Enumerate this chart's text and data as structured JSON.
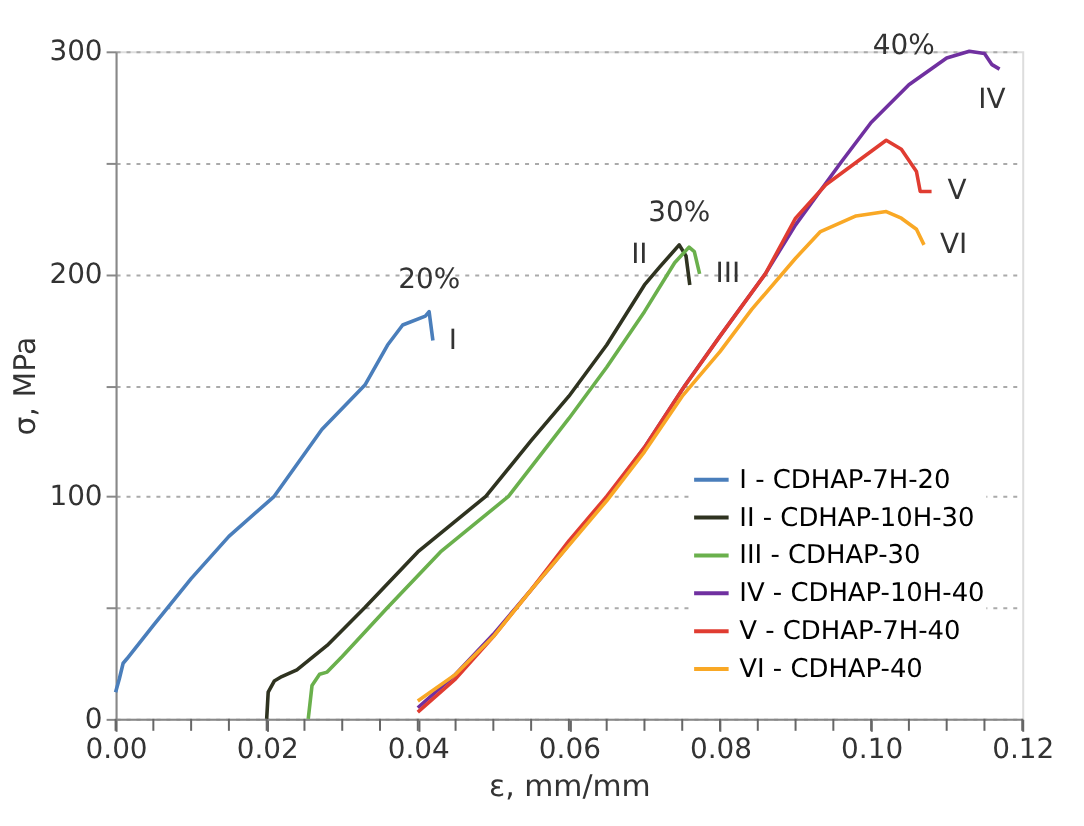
{
  "chart_data": {
    "type": "line",
    "xlabel": "ε, mm/mm",
    "ylabel": "σ, MPa",
    "xlim": [
      0,
      0.12
    ],
    "ylim": [
      0,
      300
    ],
    "xticks": [
      {
        "value": 0,
        "label": "0.00"
      },
      {
        "value": 0.005,
        "label": null
      },
      {
        "value": 0.01,
        "label": null
      },
      {
        "value": 0.015,
        "label": null
      },
      {
        "value": 0.02,
        "label": "0.02"
      },
      {
        "value": 0.025,
        "label": null
      },
      {
        "value": 0.03,
        "label": null
      },
      {
        "value": 0.035,
        "label": null
      },
      {
        "value": 0.04,
        "label": "0.04"
      },
      {
        "value": 0.045,
        "label": null
      },
      {
        "value": 0.05,
        "label": null
      },
      {
        "value": 0.055,
        "label": null
      },
      {
        "value": 0.06,
        "label": "0.06"
      },
      {
        "value": 0.065,
        "label": null
      },
      {
        "value": 0.07,
        "label": null
      },
      {
        "value": 0.075,
        "label": null
      },
      {
        "value": 0.08,
        "label": "0.08"
      },
      {
        "value": 0.085,
        "label": null
      },
      {
        "value": 0.09,
        "label": null
      },
      {
        "value": 0.095,
        "label": null
      },
      {
        "value": 0.1,
        "label": "0.10"
      },
      {
        "value": 0.105,
        "label": null
      },
      {
        "value": 0.11,
        "label": null
      },
      {
        "value": 0.115,
        "label": null
      },
      {
        "value": 0.12,
        "label": "0.12"
      }
    ],
    "yticks": [
      0,
      {
        "value": 50,
        "label": null
      },
      100,
      {
        "value": 150,
        "label": null
      },
      200,
      {
        "value": 250,
        "label": null
      },
      300
    ],
    "grid": "y",
    "legend": "bottom right",
    "marker": "none",
    "line_style": "solid",
    "series": [
      {
        "name": "I - CDHAP-7H-20",
        "color": "#4a7ebb",
        "x": [
          0,
          0.0005,
          0.001,
          0.0015,
          0.005,
          0.01,
          0.015,
          0.021,
          0.0273,
          0.033,
          0.036,
          0.038,
          0.041,
          0.0415,
          0.042
        ],
        "values": [
          12,
          18,
          25,
          27,
          42,
          63,
          82,
          100,
          130,
          150,
          168,
          177,
          181,
          183,
          170
        ]
      },
      {
        "name": "II - CDHAP-10H-30",
        "color": "#2f3320",
        "x": [
          0.02,
          0.0202,
          0.021,
          0.022,
          0.024,
          0.028,
          0.033,
          0.04,
          0.049,
          0.055,
          0.06,
          0.065,
          0.07,
          0.072,
          0.0746,
          0.0755,
          0.076
        ],
        "values": [
          0,
          12,
          17,
          19,
          22,
          33,
          50,
          75,
          100,
          125,
          145,
          168,
          195,
          203,
          213,
          208,
          195
        ]
      },
      {
        "name": "III - CDHAP-30",
        "color": "#6ab04c",
        "x": [
          0.0255,
          0.026,
          0.027,
          0.028,
          0.03,
          0.036,
          0.043,
          0.052,
          0.06,
          0.065,
          0.07,
          0.074,
          0.0759,
          0.0766,
          0.0773
        ],
        "values": [
          0,
          15,
          20,
          21,
          28,
          50,
          75,
          100,
          135,
          158,
          183,
          205,
          212,
          210,
          200
        ]
      },
      {
        "name": "IV - CDHAP-10H-40",
        "color": "#7030a0",
        "x": [
          0.04,
          0.045,
          0.05,
          0.053,
          0.058,
          0.0652,
          0.07,
          0.0754,
          0.08,
          0.086,
          0.09,
          0.096,
          0.1,
          0.105,
          0.11,
          0.113,
          0.115,
          0.116,
          0.117
        ],
        "values": [
          5,
          20,
          38,
          50,
          70,
          100,
          122,
          150,
          172,
          200,
          222,
          250,
          268,
          285,
          297,
          300,
          299,
          294,
          292
        ]
      },
      {
        "name": "V - CDHAP-7H-40",
        "color": "#e03c31",
        "x": [
          0.04,
          0.045,
          0.05,
          0.055,
          0.06,
          0.065,
          0.07,
          0.075,
          0.08,
          0.086,
          0.09,
          0.094,
          0.098,
          0.102,
          0.104,
          0.106,
          0.1065,
          0.108
        ],
        "values": [
          3,
          18,
          37,
          58,
          80,
          100,
          122,
          148,
          172,
          200,
          225,
          240,
          250,
          260,
          256,
          246,
          237,
          237
        ]
      },
      {
        "name": "VI - CDHAP-40",
        "color": "#f9a825",
        "x": [
          0.04,
          0.045,
          0.05,
          0.055,
          0.06,
          0.065,
          0.07,
          0.075,
          0.08,
          0.0842,
          0.09,
          0.0933,
          0.098,
          0.102,
          0.104,
          0.106,
          0.107
        ],
        "values": [
          8,
          20,
          37,
          58,
          78,
          98,
          120,
          145,
          165,
          184,
          207,
          219,
          226,
          228,
          225,
          220,
          213
        ]
      }
    ],
    "annotations": [
      {
        "text": "20%",
        "x": 0.0415,
        "y": 183
      },
      {
        "text": "I",
        "x": 0.042,
        "y": 170
      },
      {
        "text": "30%",
        "x": 0.0746,
        "y": 213
      },
      {
        "text": "II",
        "x": 0.072,
        "y": 203
      },
      {
        "text": "III",
        "x": 0.0773,
        "y": 200
      },
      {
        "text": "40%",
        "x": 0.11,
        "y": 297
      },
      {
        "text": "IV",
        "x": 0.116,
        "y": 294
      },
      {
        "text": "V",
        "x": 0.108,
        "y": 237
      },
      {
        "text": "VI",
        "x": 0.107,
        "y": 213
      }
    ]
  }
}
